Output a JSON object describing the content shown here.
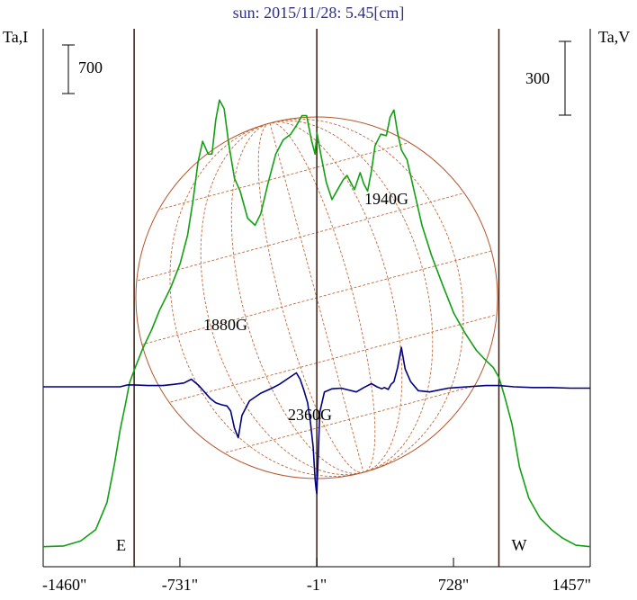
{
  "chart_data": {
    "type": "line",
    "title": "sun: 2015/11/28: 5.45[cm]",
    "left_axis_label": "Ta,I",
    "right_axis_label": "Ta,V",
    "x_ticks": [
      {
        "x": -1460,
        "label": "-1460\""
      },
      {
        "x": -731,
        "label": "-731\""
      },
      {
        "x": -1,
        "label": "-1\""
      },
      {
        "x": 728,
        "label": "728\""
      },
      {
        "x": 1457,
        "label": "1457\""
      }
    ],
    "xlim": [
      -1460,
      1457
    ],
    "limb_markers": [
      {
        "x": -975,
        "label": "E"
      },
      {
        "x": -1,
        "label": ""
      },
      {
        "x": 970,
        "label": "W"
      }
    ],
    "scale_bars": [
      {
        "series": "Ta,I",
        "value": 700,
        "label": "700"
      },
      {
        "series": "Ta,V",
        "value": 300,
        "label": "300"
      }
    ],
    "annotations": [
      {
        "text": "1880G",
        "x": -460,
        "y_v": -40
      },
      {
        "text": "2360G",
        "x": -1,
        "y_v": -160
      },
      {
        "text": "1940G",
        "x": 400,
        "y_v": 60
      }
    ],
    "series": [
      {
        "name": "Ta,I",
        "color": "#12a012",
        "axis": "left",
        "x": [
          -1460,
          -1350,
          -1260,
          -1180,
          -1120,
          -1080,
          -1050,
          -1020,
          -1000,
          -975,
          -930,
          -880,
          -840,
          -780,
          -730,
          -690,
          -660,
          -635,
          -610,
          -580,
          -560,
          -540,
          -520,
          -495,
          -470,
          -440,
          -410,
          -370,
          -330,
          -300,
          -260,
          -220,
          -180,
          -140,
          -110,
          -80,
          -55,
          -30,
          -10,
          0,
          20,
          50,
          80,
          110,
          140,
          160,
          180,
          200,
          230,
          250,
          270,
          290,
          310,
          340,
          370,
          390,
          410,
          430,
          450,
          480,
          520,
          560,
          610,
          670,
          730,
          790,
          850,
          900,
          940,
          970,
          1000,
          1040,
          1080,
          1130,
          1190,
          1250,
          1310,
          1380,
          1457
        ],
        "y": [
          40,
          45,
          80,
          160,
          350,
          620,
          860,
          1050,
          1190,
          1280,
          1430,
          1570,
          1700,
          1860,
          2030,
          2230,
          2480,
          2740,
          2890,
          2800,
          2800,
          3040,
          3180,
          3120,
          2870,
          2630,
          2540,
          2350,
          2300,
          2380,
          2600,
          2800,
          2900,
          2940,
          3000,
          3070,
          3070,
          2900,
          2800,
          2950,
          2800,
          2600,
          2480,
          2550,
          2620,
          2650,
          2600,
          2550,
          2670,
          2590,
          2540,
          2680,
          2860,
          2940,
          2930,
          3060,
          3110,
          2950,
          2830,
          2760,
          2530,
          2300,
          2090,
          1880,
          1680,
          1540,
          1420,
          1350,
          1300,
          1230,
          1100,
          900,
          600,
          380,
          240,
          160,
          100,
          50,
          40
        ]
      },
      {
        "name": "Ta,V",
        "color": "#000080",
        "axis": "right",
        "x": [
          -1460,
          -1200,
          -1050,
          -1010,
          -975,
          -900,
          -820,
          -760,
          -710,
          -670,
          -630,
          -600,
          -570,
          -540,
          -510,
          -480,
          -460,
          -440,
          -420,
          -400,
          -360,
          -300,
          -240,
          -200,
          -150,
          -110,
          -90,
          -70,
          -50,
          -35,
          -20,
          -10,
          -5,
          -1,
          5,
          15,
          40,
          80,
          130,
          170,
          210,
          250,
          290,
          320,
          345,
          360,
          380,
          395,
          410,
          430,
          450,
          470,
          500,
          540,
          600,
          700,
          800,
          900,
          970,
          1050,
          1150,
          1250,
          1350,
          1457
        ],
        "y": [
          0,
          0,
          0,
          3,
          3,
          2,
          2,
          4,
          6,
          12,
          2,
          -8,
          -18,
          -25,
          -28,
          -30,
          -38,
          -65,
          -80,
          -45,
          -22,
          -10,
          -2,
          4,
          14,
          22,
          12,
          -5,
          -25,
          -55,
          -95,
          -145,
          -160,
          -168,
          -120,
          -40,
          -8,
          -3,
          -2,
          -5,
          -8,
          -1,
          5,
          0,
          -3,
          -1,
          -4,
          4,
          8,
          30,
          62,
          28,
          8,
          -6,
          -8,
          -2,
          0,
          2,
          2,
          0,
          -1,
          -1,
          -2,
          -2
        ]
      }
    ],
    "ylim_left": [
      0,
      3580
    ],
    "ylim_right": [
      -260,
      540
    ],
    "grid": false
  }
}
